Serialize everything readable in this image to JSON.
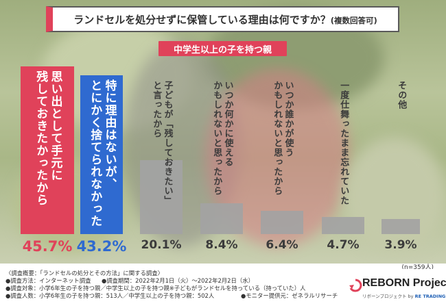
{
  "title": {
    "main": "ランドセルを処分せずに保管している理由は何ですか？",
    "note": "(複数回答可)"
  },
  "group_label": "中学生以上の子を持つ親",
  "sample_note": "(n=359人)",
  "colors": {
    "red": "#e0425a",
    "blue": "#2f6ad0",
    "gray": "#a3a3a3",
    "gray_text": "#3b3b3b"
  },
  "chart_data": {
    "type": "bar",
    "categories": [
      "思い出として手元に\n残しておきたかったから",
      "特に理由はないが、\nとにかく捨てられなかった",
      "子どもが「残しておきたい」\nと言ったから",
      "いつか何かに使える\nかもしれないと思ったから",
      "いつか誰かが使う\nかもしれないと思ったから",
      "一度仕舞ったまま忘れていた",
      "その他"
    ],
    "values": [
      45.7,
      43.2,
      20.1,
      8.4,
      6.4,
      4.7,
      3.9
    ],
    "value_labels": [
      "45.7%",
      "43.2%",
      "20.1%",
      "8.4%",
      "6.4%",
      "4.7%",
      "3.9%"
    ],
    "unit": "%",
    "ylim": [
      0,
      45.7
    ],
    "grid": false,
    "legend": "none"
  },
  "footer": {
    "heading": "〈調査概要：「ランドセルの処分とその方法」に関する調査〉",
    "method": "●調査方法：インターネット調査",
    "period": "●調査期間：2022年2月1日（火）〜2022年2月2日（水）",
    "target": "●調査対象：小学6年生の子を持つ親／中学生以上の子を持つ親※子どもがランドセルを持っている（持っていた）人",
    "count": "●調査人数：小学6年生の子を持つ親：513人／中学生以上の子を持つ親：502人",
    "provider": "●モニター提供元：ゼネラルリサーチ"
  },
  "logo": {
    "name": "REBORN Project",
    "sub": "リボーンプロジェクト by",
    "partner": "RE TRADING"
  }
}
